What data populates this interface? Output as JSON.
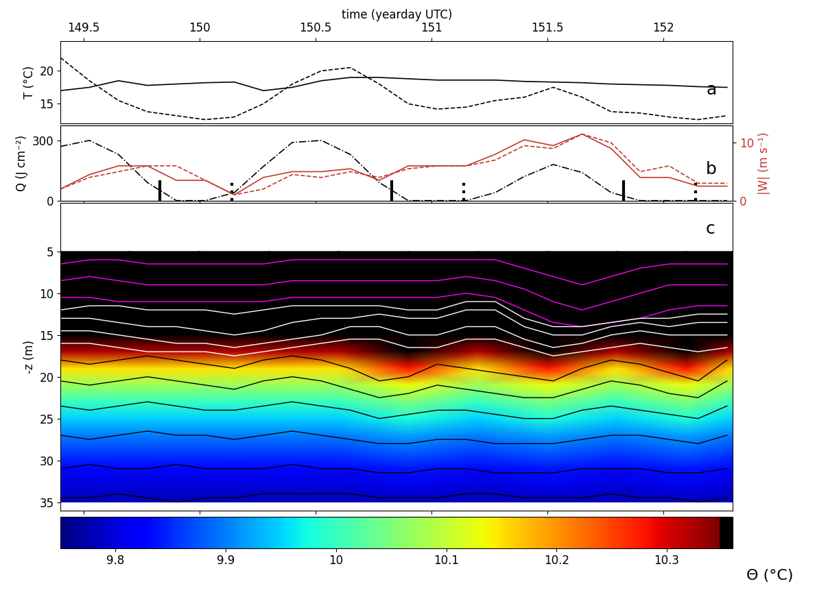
{
  "chart_data": [
    {
      "type": "line",
      "x_label": "time (yearday UTC)",
      "y_label": "T (°C)",
      "annotation": "a",
      "x": [
        149.4,
        149.525,
        149.65,
        149.775,
        149.9,
        150.025,
        150.15,
        150.275,
        150.4,
        150.525,
        150.65,
        150.775,
        150.9,
        151.025,
        151.15,
        151.275,
        151.4,
        151.525,
        151.65,
        151.775,
        151.9,
        152.025,
        152.15,
        152.275
      ],
      "xlim": [
        149.4,
        152.3
      ],
      "xticks": [
        149.5,
        150,
        150.5,
        151,
        151.5,
        152
      ],
      "ylim": [
        12,
        24.5
      ],
      "yticks": [
        15,
        20
      ],
      "series": [
        {
          "color": "#000000",
          "line_style": "solid",
          "values": [
            17.0,
            17.5,
            18.5,
            17.8,
            18.0,
            18.2,
            18.3,
            17.0,
            17.5,
            18.5,
            19.0,
            19.0,
            18.8,
            18.6,
            18.6,
            18.6,
            18.4,
            18.3,
            18.2,
            18.0,
            17.9,
            17.8,
            17.6,
            17.5
          ]
        },
        {
          "color": "#000000",
          "line_style": "dashed",
          "values": [
            22.0,
            18.5,
            15.5,
            13.8,
            13.2,
            12.6,
            13.0,
            15.0,
            18.0,
            20.0,
            20.5,
            18.0,
            15.0,
            14.2,
            14.5,
            15.5,
            16.0,
            17.5,
            16.0,
            13.8,
            13.6,
            13.0,
            12.6,
            13.2
          ]
        }
      ]
    },
    {
      "type": "line",
      "tick_labels": "y",
      "y_label": "Q (J cm⁻²)",
      "y2_label": "|W| (m s⁻¹)",
      "annotation": "b",
      "x": [
        149.4,
        149.525,
        149.65,
        149.775,
        149.9,
        150.025,
        150.15,
        150.275,
        150.4,
        150.525,
        150.65,
        150.775,
        150.9,
        151.025,
        151.15,
        151.275,
        151.4,
        151.525,
        151.65,
        151.775,
        151.9,
        152.025,
        152.15,
        152.275
      ],
      "xlim": [
        149.4,
        152.3
      ],
      "xticks": [
        149.5,
        150,
        150.5,
        151,
        151.5,
        152
      ],
      "ylim": [
        0,
        375
      ],
      "yticks": [
        0,
        300
      ],
      "y2lim": [
        0,
        13
      ],
      "y2ticks": [
        0,
        10
      ],
      "series": [
        {
          "color": "#000000",
          "line_style": "dashdot",
          "values": [
            270,
            300,
            230,
            90,
            0,
            0,
            40,
            170,
            290,
            300,
            230,
            90,
            0,
            0,
            0,
            40,
            120,
            180,
            140,
            40,
            0,
            0,
            0,
            0
          ]
        },
        {
          "color": "#c0392b",
          "line_style": "solid",
          "axis": "y2",
          "values": [
            2,
            4.5,
            6,
            6,
            3.5,
            3.5,
            1,
            4,
            5,
            5,
            5.5,
            3.5,
            6,
            6,
            6,
            8,
            10.5,
            9.5,
            11.5,
            9,
            4,
            4,
            2.5,
            2.5
          ]
        },
        {
          "color": "#c0392b",
          "line_style": "dashed",
          "axis": "y2",
          "values": [
            2,
            4,
            5,
            6,
            6,
            3.5,
            1,
            2,
            4.5,
            4,
            5,
            4,
            5.5,
            6,
            6,
            7,
            9.5,
            9,
            11.5,
            10,
            5,
            6,
            3,
            3
          ]
        }
      ],
      "vlines": [
        {
          "x": [
            149.83,
            150.83,
            151.83
          ],
          "height": 100,
          "color": "#000000",
          "line_style": "solid"
        },
        {
          "x": [
            150.14,
            151.14,
            152.14
          ],
          "height": 100,
          "color": "#000000",
          "line_style": "dotted"
        }
      ]
    },
    {
      "type": "heatmap",
      "tick_labels": "y",
      "y_label": "-z (m)",
      "annotation": "c",
      "xlim": [
        149.4,
        152.3
      ],
      "xticks": [
        149.5,
        150,
        150.5,
        151,
        151.5,
        152
      ],
      "ylim": [
        36,
        -0.8
      ],
      "yticks": [
        5,
        10,
        15,
        20,
        25,
        30,
        35
      ],
      "cells": {
        "x": [
          149.4,
          149.7,
          150.0,
          150.3,
          150.6,
          150.9,
          151.2,
          151.5,
          151.8,
          152.1,
          152.3
        ],
        "depth": [
          5,
          7,
          9,
          11,
          13,
          15,
          17,
          19,
          21,
          23,
          25,
          27,
          29,
          31,
          33,
          35
        ],
        "values": [
          [
            10.5,
            10.5,
            10.5,
            10.5,
            10.5,
            10.5,
            10.5,
            10.5,
            10.5,
            10.5,
            10.5
          ],
          [
            10.5,
            10.5,
            10.5,
            10.5,
            10.5,
            10.5,
            10.5,
            10.5,
            10.5,
            10.5,
            10.5
          ],
          [
            10.5,
            10.5,
            10.5,
            10.5,
            10.5,
            10.5,
            10.5,
            10.5,
            10.5,
            10.5,
            10.5
          ],
          [
            10.5,
            10.5,
            10.5,
            10.5,
            10.5,
            10.5,
            10.5,
            10.5,
            10.5,
            10.5,
            10.5
          ],
          [
            10.5,
            10.5,
            10.5,
            10.5,
            10.5,
            10.5,
            10.5,
            10.5,
            10.5,
            10.5,
            10.5
          ],
          [
            10.45,
            10.45,
            10.45,
            10.45,
            10.45,
            10.5,
            10.45,
            10.5,
            10.45,
            10.5,
            10.45
          ],
          [
            10.32,
            10.32,
            10.32,
            10.32,
            10.32,
            10.42,
            10.32,
            10.42,
            10.32,
            10.42,
            10.32
          ],
          [
            10.15,
            10.15,
            10.15,
            10.15,
            10.15,
            10.28,
            10.15,
            10.28,
            10.15,
            10.28,
            10.15
          ],
          [
            10.07,
            10.07,
            10.07,
            10.07,
            10.07,
            10.13,
            10.07,
            10.13,
            10.07,
            10.13,
            10.07
          ],
          [
            10.0,
            10.0,
            10.0,
            10.0,
            10.0,
            10.05,
            10.0,
            10.05,
            10.0,
            10.05,
            10.0
          ],
          [
            9.95,
            9.95,
            9.95,
            9.95,
            9.95,
            9.98,
            9.95,
            9.98,
            9.95,
            9.98,
            9.95
          ],
          [
            9.9,
            9.9,
            9.9,
            9.9,
            9.9,
            9.92,
            9.9,
            9.92,
            9.9,
            9.92,
            9.9
          ],
          [
            9.86,
            9.86,
            9.86,
            9.86,
            9.86,
            9.88,
            9.86,
            9.88,
            9.86,
            9.88,
            9.86
          ],
          [
            9.83,
            9.83,
            9.83,
            9.83,
            9.83,
            9.84,
            9.83,
            9.84,
            9.83,
            9.84,
            9.83
          ],
          [
            9.8,
            9.8,
            9.8,
            9.8,
            9.8,
            9.81,
            9.8,
            9.81,
            9.8,
            9.81,
            9.8
          ],
          [
            9.78,
            9.78,
            9.78,
            9.78,
            9.78,
            9.78,
            9.78,
            9.78,
            9.78,
            9.78,
            9.78
          ]
        ]
      },
      "colorbar": {
        "label": "Θ (°C)",
        "range": [
          9.75,
          10.36
        ],
        "ticks": [
          9.8,
          9.9,
          10,
          10.1,
          10.2,
          10.3
        ],
        "black_above": 10.35
      },
      "x": [
        149.4,
        149.525,
        149.65,
        149.775,
        149.9,
        150.025,
        150.15,
        150.275,
        150.4,
        150.525,
        150.65,
        150.775,
        150.9,
        151.025,
        151.15,
        151.275,
        151.4,
        151.525,
        151.65,
        151.775,
        151.9,
        152.025,
        152.15,
        152.275
      ],
      "series": [
        {
          "color": "#ff00ff",
          "line_style": "solid",
          "values": [
            6.5,
            6,
            6,
            6.5,
            6.5,
            6.5,
            6.5,
            6.5,
            6,
            6,
            6,
            6,
            6,
            6,
            6,
            6,
            7,
            8,
            9,
            8,
            7,
            6.5,
            6.5,
            6.5
          ]
        },
        {
          "color": "#ff00ff",
          "line_style": "solid",
          "values": [
            8.5,
            8,
            8.5,
            9,
            9,
            9,
            9,
            9,
            8.5,
            8.5,
            8.5,
            8.5,
            8.5,
            8.5,
            8,
            8.5,
            9.5,
            11,
            12,
            11,
            10,
            9,
            9,
            9
          ]
        },
        {
          "color": "#ff00ff",
          "line_style": "solid",
          "values": [
            10.5,
            10.5,
            11,
            11,
            11,
            11,
            11,
            11,
            10.5,
            10.5,
            10.5,
            10.5,
            10.5,
            10.5,
            10,
            10.5,
            12,
            13.5,
            14,
            13.5,
            13,
            12,
            11.5,
            11.5
          ]
        },
        {
          "color": "#ffffff",
          "line_style": "solid",
          "values": [
            12,
            11.5,
            11.5,
            12,
            12,
            12,
            12.5,
            12,
            11.5,
            11.5,
            11.5,
            11.5,
            12,
            12,
            11,
            11,
            13,
            14,
            14,
            13.5,
            13,
            13,
            12.5,
            12.5
          ]
        },
        {
          "color": "#ffffff",
          "line_style": "solid",
          "values": [
            13,
            13,
            13.5,
            14,
            14,
            14.5,
            15,
            14.5,
            13.5,
            13,
            13,
            12.5,
            13,
            13,
            12,
            12,
            14,
            15,
            15,
            14,
            13.5,
            14,
            13.5,
            13.5
          ]
        },
        {
          "color": "#ffffff",
          "line_style": "solid",
          "values": [
            14.5,
            14.5,
            15,
            15.5,
            16,
            16,
            16.5,
            16,
            15.5,
            15,
            14,
            14,
            15,
            15,
            14,
            14,
            15.5,
            16.5,
            16,
            15,
            14.5,
            15,
            15,
            15
          ]
        },
        {
          "color": "#ffffff",
          "line_style": "solid",
          "values": [
            16,
            16,
            16.5,
            17,
            17,
            17,
            17.5,
            17,
            16.5,
            16,
            15.5,
            15.5,
            16.5,
            16.5,
            15.5,
            15.5,
            16.5,
            17.5,
            17,
            16.5,
            16,
            16.5,
            17,
            16.5
          ]
        },
        {
          "color": "#000000",
          "line_style": "solid",
          "values": [
            18,
            18.5,
            18,
            17.5,
            18,
            18.5,
            19,
            18,
            17.5,
            18,
            19,
            20.5,
            20,
            18.5,
            19,
            19.5,
            20,
            20.5,
            19,
            18,
            18.5,
            19.5,
            20.5,
            18
          ]
        },
        {
          "color": "#000000",
          "line_style": "solid",
          "values": [
            20.5,
            21,
            20.5,
            20,
            20.5,
            21,
            21.5,
            20.5,
            20,
            20.5,
            21.5,
            22.5,
            22,
            21,
            21.5,
            22,
            22.5,
            22.5,
            21.5,
            20.5,
            21,
            22,
            22.5,
            20.5
          ]
        },
        {
          "color": "#000000",
          "line_style": "solid",
          "values": [
            23.5,
            24,
            23.5,
            23,
            23.5,
            24,
            24,
            23.5,
            23,
            23.5,
            24,
            25,
            24.5,
            24,
            24,
            24.5,
            25,
            25,
            24,
            23.5,
            24,
            24.5,
            25,
            23.5
          ]
        },
        {
          "color": "#000000",
          "line_style": "solid",
          "values": [
            27,
            27.5,
            27,
            26.5,
            27,
            27,
            27.5,
            27,
            26.5,
            27,
            27.5,
            28,
            28,
            27.5,
            27.5,
            28,
            28,
            28,
            27.5,
            27,
            27,
            27.5,
            28,
            27
          ]
        },
        {
          "color": "#000000",
          "line_style": "solid",
          "values": [
            31,
            30.5,
            31,
            31,
            30.5,
            31,
            31,
            31,
            30.5,
            31,
            31,
            31.5,
            31.5,
            31,
            31,
            31.5,
            31.5,
            31.5,
            31,
            31,
            31,
            31.5,
            31.5,
            31
          ]
        },
        {
          "color": "#000000",
          "line_style": "solid",
          "values": [
            34.5,
            34.5,
            34,
            34.5,
            35,
            34.5,
            34.5,
            34,
            34,
            34,
            34,
            34.5,
            34.5,
            34.5,
            34,
            34,
            34.5,
            34.5,
            34.5,
            34,
            34.5,
            34.5,
            35,
            34.5
          ]
        }
      ]
    }
  ]
}
